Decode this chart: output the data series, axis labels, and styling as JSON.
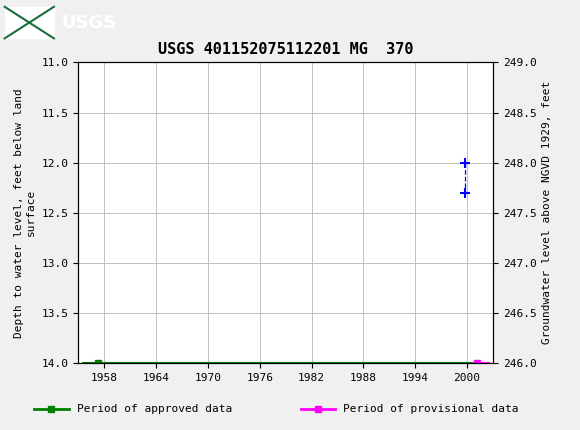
{
  "title": "USGS 401152075112201 MG  370",
  "left_ylabel": "Depth to water level, feet below land\nsurface",
  "right_ylabel": "Groundwater level above NGVD 1929, feet",
  "xlim": [
    1955,
    2003
  ],
  "ylim_left_top": 11.0,
  "ylim_left_bottom": 14.0,
  "ylim_right_top": 249.0,
  "ylim_right_bottom": 246.0,
  "xticks": [
    1958,
    1964,
    1970,
    1976,
    1982,
    1988,
    1994,
    2000
  ],
  "yticks_left": [
    11.0,
    11.5,
    12.0,
    12.5,
    13.0,
    13.5,
    14.0
  ],
  "yticks_right": [
    249.0,
    248.5,
    248.0,
    247.5,
    247.0,
    246.5,
    246.0
  ],
  "approved_point_x": 1957.3,
  "approved_point_y": 14.0,
  "provisional_point_x": 2001.2,
  "provisional_point_y": 14.0,
  "blue_point1_x": 1999.8,
  "blue_point1_y": 12.0,
  "blue_point2_x": 1999.8,
  "blue_point2_y": 12.3,
  "green_line_x1": 1955.5,
  "green_line_x2": 2000.8,
  "magenta_line_x1": 2000.8,
  "magenta_line_x2": 2002.5,
  "line_y": 14.0,
  "approved_color": "#008000",
  "provisional_color": "#FF00FF",
  "blue_color": "#0000FF",
  "background_color": "#f0f0f0",
  "header_color": "#1a6e3c",
  "plot_bg_color": "#ffffff",
  "grid_color": "#c0c0c0",
  "title_fontsize": 11,
  "axis_label_fontsize": 8,
  "tick_fontsize": 8,
  "legend_fontsize": 8
}
